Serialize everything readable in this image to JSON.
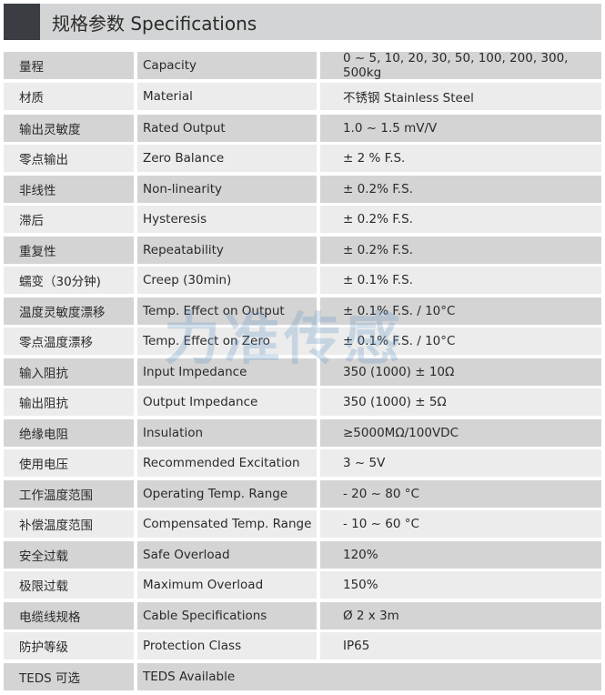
{
  "header": {
    "title": "规格参数 Specifications"
  },
  "watermark": "力准传感",
  "colors": {
    "header_square": "#3a3d42",
    "header_bg": "#d3d4d5",
    "row_dark": "#d4d4d4",
    "row_light": "#ececec",
    "watermark": "#6496c8"
  },
  "rows": [
    {
      "zh": "量程",
      "en": "Capacity",
      "value": "0 ~ 5, 10, 20, 30, 50, 100, 200, 300, 500kg"
    },
    {
      "zh": "材质",
      "en": "Material",
      "value": "不锈钢 Stainless Steel"
    },
    {
      "zh": "输出灵敏度",
      "en": "Rated Output",
      "value": "1.0 ~ 1.5 mV/V"
    },
    {
      "zh": "零点输出",
      "en": "Zero Balance",
      "value": "± 2 % F.S."
    },
    {
      "zh": "非线性",
      "en": "Non-linearity",
      "value": "± 0.2% F.S."
    },
    {
      "zh": "滞后",
      "en": "Hysteresis",
      "value": "± 0.2% F.S."
    },
    {
      "zh": "重复性",
      "en": "Repeatability",
      "value": "± 0.2% F.S."
    },
    {
      "zh": "蠕变（30分钟)",
      "en": "Creep (30min)",
      "value": "± 0.1% F.S."
    },
    {
      "zh": "温度灵敏度漂移",
      "en": "Temp. Effect on Output",
      "value": "± 0.1% F.S. / 10°C"
    },
    {
      "zh": "零点温度漂移",
      "en": "Temp. Effect on Zero",
      "value": "± 0.1% F.S. / 10°C"
    },
    {
      "zh": "输入阻抗",
      "en": "Input Impedance",
      "value": "350 (1000) ± 10Ω"
    },
    {
      "zh": "输出阻抗",
      "en": "Output Impedance",
      "value": "350 (1000) ± 5Ω"
    },
    {
      "zh": "绝缘电阻",
      "en": "Insulation",
      "value": "≥5000MΩ/100VDC"
    },
    {
      "zh": "使用电压",
      "en": "Recommended Excitation",
      "value": "3 ~ 5V"
    },
    {
      "zh": "工作温度范围",
      "en": "Operating Temp. Range",
      "value": "- 20 ~ 80 °C"
    },
    {
      "zh": "补偿温度范围",
      "en": "Compensated Temp. Range",
      "value": "- 10 ~ 60 °C"
    },
    {
      "zh": "安全过载",
      "en": "Safe Overload",
      "value": "120%"
    },
    {
      "zh": "极限过载",
      "en": "Maximum Overload",
      "value": "150%"
    },
    {
      "zh": "电缆线规格",
      "en": "Cable Specifications",
      "value": "Ø 2 x 3m"
    },
    {
      "zh": "防护等级",
      "en": "Protection Class",
      "value": "IP65"
    },
    {
      "zh": "TEDS 可选",
      "en": "TEDS Available"
    }
  ]
}
